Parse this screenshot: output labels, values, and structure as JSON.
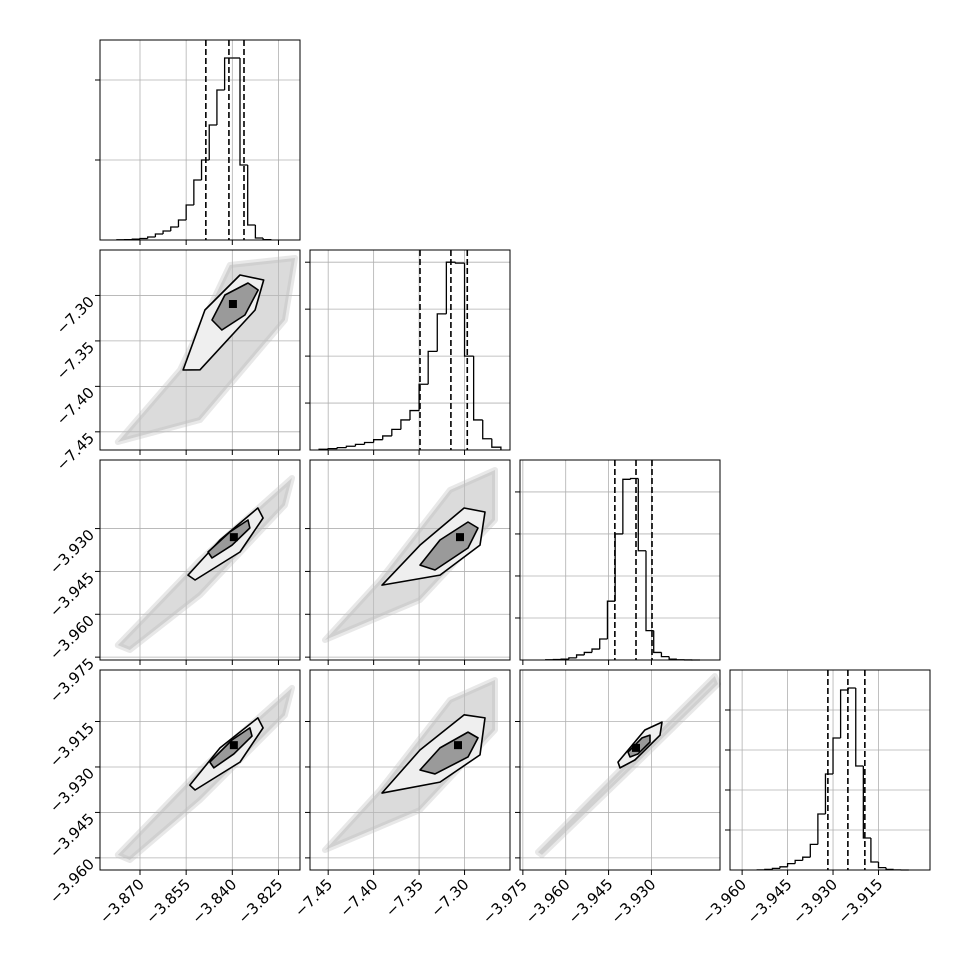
{
  "chart_data": [
    {
      "type": "histogram",
      "color": "#000000",
      "bins": [
        -3.8775,
        -3.875,
        -3.8725,
        -3.87,
        -3.8675,
        -3.865,
        -3.8625,
        -3.86,
        -3.8575,
        -3.855,
        -3.8525,
        -3.85,
        -3.8475,
        -3.845,
        -3.8425,
        -3.84,
        -3.8375,
        -3.835,
        -3.8325,
        -3.83,
        -3.8275
      ],
      "values": [
        2,
        4,
        8,
        15,
        30,
        60,
        90,
        130,
        200,
        350,
        600,
        800,
        1150,
        1500,
        1820,
        1820,
        750,
        150,
        20,
        3
      ],
      "quantiles": [
        -3.8486,
        -3.8411,
        -3.8362
      ],
      "xlim": [
        -3.883,
        -3.818
      ],
      "xticks": [
        -3.87,
        -3.855,
        -3.84,
        -3.825
      ],
      "ylim": [
        0,
        2000
      ],
      "yticks": [
        800,
        1600
      ]
    },
    {
      "type": "contour",
      "color": "#000000",
      "cloud_color": "#bdbdbd",
      "fill_colors": [
        "#efefef",
        "#9a9a9a"
      ],
      "cloud": {
        "x": [
          -3.8772,
          -3.857,
          -3.8408,
          -3.8196,
          -3.8229,
          -3.8505
        ],
        "y": [
          -7.4612,
          -7.382,
          -7.2665,
          -7.2588,
          -7.327,
          -7.437
        ]
      },
      "contours": [
        {
          "x": [
            -3.856,
            -3.8489,
            -3.8375,
            -3.8298,
            -3.8326,
            -3.8505
          ],
          "y": [
            -7.382,
            -7.316,
            -7.2775,
            -7.283,
            -7.316,
            -7.3818
          ]
        },
        {
          "x": [
            -3.8466,
            -3.8424,
            -3.8349,
            -3.8316,
            -3.8359,
            -3.8434
          ],
          "y": [
            -7.327,
            -7.2995,
            -7.2863,
            -7.294,
            -7.3215,
            -7.338
          ]
        }
      ],
      "peak": {
        "x": -3.8398,
        "y": -7.3094
      },
      "xlim": [
        -3.883,
        -3.818
      ],
      "xticks": [
        -3.87,
        -3.855,
        -3.84,
        -3.825
      ],
      "ylim": [
        -7.47,
        -7.25
      ],
      "yticks": [
        {
          "value": -7.45,
          "label": "−7.45"
        },
        {
          "value": -7.4,
          "label": "−7.40"
        },
        {
          "value": -7.35,
          "label": "−7.35"
        },
        {
          "value": -7.3,
          "label": "−7.30"
        }
      ]
    },
    {
      "type": "histogram",
      "color": "#000000",
      "bins": [
        -7.46,
        -7.45,
        -7.44,
        -7.43,
        -7.42,
        -7.41,
        -7.4,
        -7.39,
        -7.38,
        -7.37,
        -7.36,
        -7.35,
        -7.34,
        -7.33,
        -7.32,
        -7.31,
        -7.3,
        -7.29,
        -7.28,
        -7.27,
        -7.26
      ],
      "values": [
        8,
        15,
        25,
        40,
        60,
        80,
        110,
        150,
        220,
        320,
        420,
        700,
        1050,
        1450,
        2000,
        1990,
        1000,
        320,
        120,
        30
      ],
      "quantiles": [
        -7.349,
        -7.315,
        -7.297
      ],
      "xlim": [
        -7.47,
        -7.25
      ],
      "xticks": [
        -7.45,
        -7.4,
        -7.35,
        -7.3
      ],
      "ylim": [
        0,
        2130
      ],
      "yticks": [
        500,
        1000,
        1500,
        2000
      ]
    },
    {
      "type": "contour",
      "color": "#000000",
      "cloud_color": "#bdbdbd",
      "fill_colors": [
        "#efefef",
        "#9a9a9a"
      ],
      "cloud": {
        "x": [
          -3.8772,
          -3.8505,
          -3.8206,
          -3.8229,
          -3.8505,
          -3.8733
        ],
        "y": [
          -3.9708,
          -3.941,
          -3.9123,
          -3.9218,
          -3.9533,
          -3.9725
        ]
      },
      "contours": [
        {
          "x": [
            -3.8544,
            -3.844,
            -3.8317,
            -3.83,
            -3.8375,
            -3.8521
          ],
          "y": [
            -3.9463,
            -3.934,
            -3.9228,
            -3.9263,
            -3.9382,
            -3.948
          ]
        },
        {
          "x": [
            -3.8479,
            -3.8408,
            -3.8349,
            -3.8343,
            -3.8401,
            -3.8466
          ],
          "y": [
            -3.9382,
            -3.9312,
            -3.927,
            -3.9298,
            -3.9358,
            -3.9403
          ]
        }
      ],
      "peak": {
        "x": -3.8395,
        "y": -3.933
      },
      "xlim": [
        -3.883,
        -3.818
      ],
      "xticks": [
        -3.87,
        -3.855,
        -3.84,
        -3.825
      ],
      "ylim": [
        -3.976,
        -3.906
      ],
      "yticks": [
        {
          "value": -3.975,
          "label": "−3.975"
        },
        {
          "value": -3.96,
          "label": "−3.960"
        },
        {
          "value": -3.945,
          "label": "−3.945"
        },
        {
          "value": -3.93,
          "label": "−3.930"
        }
      ]
    },
    {
      "type": "contour",
      "color": "#000000",
      "cloud_color": "#bdbdbd",
      "fill_colors": [
        "#efefef",
        "#9a9a9a"
      ],
      "cloud": {
        "x": [
          -7.4535,
          -7.393,
          -7.316,
          -7.2665,
          -7.2665,
          -7.349
        ],
        "y": [
          -3.969,
          -3.948,
          -3.9165,
          -3.9095,
          -3.927,
          -3.955
        ]
      },
      "contours": [
        {
          "x": [
            -7.3908,
            -7.349,
            -7.3005,
            -7.2775,
            -7.283,
            -7.327
          ],
          "y": [
            -3.9498,
            -3.9358,
            -3.9228,
            -3.9242,
            -3.9358,
            -3.9463
          ]
        },
        {
          "x": [
            -7.349,
            -7.327,
            -7.2962,
            -7.2852,
            -7.2962,
            -7.3325
          ],
          "y": [
            -3.9428,
            -3.934,
            -3.9277,
            -3.9298,
            -3.9368,
            -3.9445
          ]
        }
      ],
      "peak": {
        "x": -7.305,
        "y": -3.933
      },
      "xlim": [
        -7.47,
        -7.25
      ],
      "xticks": [
        -7.45,
        -7.4,
        -7.35,
        -7.3
      ],
      "ylim": [
        -3.976,
        -3.906
      ],
      "yticks": [
        -3.975,
        -3.96,
        -3.945,
        -3.93
      ]
    },
    {
      "type": "histogram",
      "color": "#000000",
      "bins": [
        -3.967,
        -3.9643,
        -3.9616,
        -3.9589,
        -3.9562,
        -3.9535,
        -3.9508,
        -3.9481,
        -3.9454,
        -3.9427,
        -3.94,
        -3.9373,
        -3.9346,
        -3.9319,
        -3.9292,
        -3.9265,
        -3.9238,
        -3.9211,
        -3.9184,
        -3.9157,
        -3.913
      ],
      "values": [
        2,
        5,
        10,
        25,
        60,
        90,
        130,
        250,
        700,
        1500,
        2150,
        2160,
        1300,
        350,
        90,
        40,
        10,
        3,
        1,
        0
      ],
      "quantiles": [
        -3.9428,
        -3.9354,
        -3.9298
      ],
      "xlim": [
        -3.976,
        -3.906
      ],
      "xticks": [
        -3.975,
        -3.96,
        -3.945,
        -3.93
      ],
      "ylim": [
        0,
        2380
      ],
      "yticks": [
        500,
        1000,
        1500,
        2000
      ]
    },
    {
      "type": "contour",
      "color": "#000000",
      "cloud_color": "#bdbdbd",
      "fill_colors": [
        "#efefef",
        "#9a9a9a"
      ],
      "cloud": {
        "x": [
          -3.8772,
          -3.8505,
          -3.8206,
          -3.8229,
          -3.8505,
          -3.8733
        ],
        "y": [
          -3.959,
          -3.931,
          -3.9039,
          -3.9129,
          -3.9409,
          -3.9607
        ]
      },
      "contours": [
        {
          "x": [
            -3.8538,
            -3.844,
            -3.8317,
            -3.83,
            -3.8375,
            -3.8521
          ],
          "y": [
            -3.936,
            -3.9237,
            -3.9138,
            -3.9171,
            -3.9284,
            -3.9376
          ]
        },
        {
          "x": [
            -3.8473,
            -3.8401,
            -3.8343,
            -3.8336,
            -3.8395,
            -3.846
          ],
          "y": [
            -3.9284,
            -3.9211,
            -3.9171,
            -3.9198,
            -3.9257,
            -3.9303
          ]
        }
      ],
      "peak": {
        "x": -3.8395,
        "y": -3.9228
      },
      "xlim": [
        -3.883,
        -3.818
      ],
      "xticks": [
        {
          "value": -3.87,
          "label": "−3.870"
        },
        {
          "value": -3.855,
          "label": "−3.855"
        },
        {
          "value": -3.84,
          "label": "−3.840"
        },
        {
          "value": -3.825,
          "label": "−3.825"
        }
      ],
      "ylim": [
        -3.964,
        -3.898
      ],
      "yticks": [
        {
          "value": -3.96,
          "label": "−3.960"
        },
        {
          "value": -3.945,
          "label": "−3.945"
        },
        {
          "value": -3.93,
          "label": "−3.930"
        },
        {
          "value": -3.915,
          "label": "−3.915"
        }
      ]
    },
    {
      "type": "contour",
      "color": "#000000",
      "cloud_color": "#bdbdbd",
      "fill_colors": [
        "#efefef",
        "#9a9a9a"
      ],
      "cloud": {
        "x": [
          -7.4535,
          -7.393,
          -7.316,
          -7.2665,
          -7.2665,
          -7.349
        ],
        "y": [
          -3.9574,
          -3.9376,
          -3.9079,
          -3.9013,
          -3.9178,
          -3.9442
        ]
      },
      "contours": [
        {
          "x": [
            -7.3908,
            -7.349,
            -7.3005,
            -7.2775,
            -7.283,
            -7.327
          ],
          "y": [
            -3.9386,
            -3.9244,
            -3.9128,
            -3.9138,
            -3.926,
            -3.935
          ]
        },
        {
          "x": [
            -7.349,
            -7.327,
            -7.2962,
            -7.2852,
            -7.2962,
            -7.3325
          ],
          "y": [
            -3.931,
            -3.9237,
            -3.9185,
            -3.9204,
            -3.9267,
            -3.9323
          ]
        }
      ],
      "peak": {
        "x": -7.3072,
        "y": -3.9228
      },
      "xlim": [
        -7.47,
        -7.25
      ],
      "xticks": [
        {
          "value": -7.45,
          "label": "−7.45"
        },
        {
          "value": -7.4,
          "label": "−7.40"
        },
        {
          "value": -7.35,
          "label": "−7.35"
        },
        {
          "value": -7.3,
          "label": "−7.30"
        }
      ],
      "ylim": [
        -3.964,
        -3.898
      ],
      "yticks": [
        -3.96,
        -3.945,
        -3.93,
        -3.915
      ]
    },
    {
      "type": "contour",
      "color": "#000000",
      "cloud_color": "#bdbdbd",
      "fill_colors": [
        "#efefef",
        "#9a9a9a"
      ],
      "cloud": {
        "x": [
          -3.9697,
          -3.941,
          -3.9078,
          -3.9067,
          -3.9375,
          -3.9683
        ],
        "y": [
          -3.9581,
          -3.931,
          -3.9,
          -3.9026,
          -3.931,
          -3.959
        ]
      },
      "contours": [
        {
          "x": [
            -3.9417,
            -3.9323,
            -3.9263,
            -3.927,
            -3.9358,
            -3.941
          ],
          "y": [
            -3.9284,
            -3.9178,
            -3.9152,
            -3.9195,
            -3.9277,
            -3.9303
          ]
        },
        {
          "x": [
            -3.9382,
            -3.9333,
            -3.9305,
            -3.9305,
            -3.9347,
            -3.9375
          ],
          "y": [
            -3.9251,
            -3.9204,
            -3.9195,
            -3.9218,
            -3.9257,
            -3.9267
          ]
        }
      ],
      "peak": {
        "x": -3.9354,
        "y": -3.9237
      },
      "xlim": [
        -3.976,
        -3.906
      ],
      "xticks": [
        {
          "value": -3.975,
          "label": "−3.975"
        },
        {
          "value": -3.96,
          "label": "−3.960"
        },
        {
          "value": -3.945,
          "label": "−3.945"
        },
        {
          "value": -3.93,
          "label": "−3.930"
        }
      ],
      "ylim": [
        -3.964,
        -3.898
      ],
      "yticks": [
        -3.96,
        -3.945,
        -3.93,
        -3.915
      ]
    },
    {
      "type": "histogram",
      "color": "#000000",
      "bins": [
        -3.955,
        -3.9525,
        -3.95,
        -3.9475,
        -3.945,
        -3.9425,
        -3.94,
        -3.9375,
        -3.935,
        -3.9325,
        -3.93,
        -3.9275,
        -3.925,
        -3.9225,
        -3.92,
        -3.9175,
        -3.915,
        -3.9125,
        -3.91,
        -3.9075,
        -3.905
      ],
      "values": [
        2,
        8,
        20,
        40,
        80,
        120,
        160,
        320,
        700,
        1200,
        1650,
        2250,
        2275,
        1300,
        400,
        100,
        30,
        8,
        2,
        0
      ],
      "quantiles": [
        -3.9317,
        -3.9251,
        -3.9195
      ],
      "xlim": [
        -3.964,
        -3.898
      ],
      "xticks": [
        {
          "value": -3.96,
          "label": "−3.960"
        },
        {
          "value": -3.945,
          "label": "−3.945"
        },
        {
          "value": -3.93,
          "label": "−3.930"
        },
        {
          "value": -3.915,
          "label": "−3.915"
        }
      ],
      "ylim": [
        0,
        2500
      ],
      "yticks": [
        500,
        1000,
        1500,
        2000
      ]
    }
  ]
}
